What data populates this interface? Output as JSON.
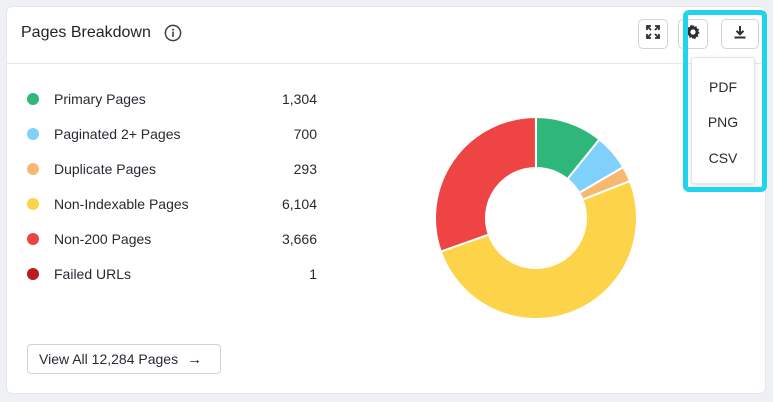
{
  "card": {
    "title": "Pages Breakdown",
    "view_all_label": "View All 12,284 Pages",
    "view_all_arrow": "→"
  },
  "legend": [
    {
      "label": "Primary Pages",
      "value": "1,304",
      "color": "#2fb77a"
    },
    {
      "label": "Paginated 2+ Pages",
      "value": "700",
      "color": "#7fd1fb"
    },
    {
      "label": "Duplicate Pages",
      "value": "293",
      "color": "#f7b972"
    },
    {
      "label": "Non-Indexable Pages",
      "value": "6,104",
      "color": "#fdd34a"
    },
    {
      "label": "Non-200 Pages",
      "value": "3,666",
      "color": "#ef4444"
    },
    {
      "label": "Failed URLs",
      "value": "1",
      "color": "#b91c1c"
    }
  ],
  "chart_data": {
    "type": "pie",
    "variant": "donut",
    "title": "Pages Breakdown",
    "categories": [
      "Primary Pages",
      "Paginated 2+ Pages",
      "Duplicate Pages",
      "Non-Indexable Pages",
      "Non-200 Pages",
      "Failed URLs"
    ],
    "values": [
      1304,
      700,
      293,
      6104,
      3666,
      1
    ],
    "colors": [
      "#2fb77a",
      "#7fd1fb",
      "#f7b972",
      "#fdd34a",
      "#ef4444",
      "#b91c1c"
    ]
  },
  "export_menu": {
    "items": [
      "PDF",
      "PNG",
      "CSV"
    ]
  },
  "colors": {
    "highlight": "#22d3ee",
    "border": "#cfd4da"
  },
  "icons": {
    "info": "info-icon",
    "fullscreen": "expand-icon",
    "settings": "gear-icon",
    "download": "download-icon",
    "arrow": "arrow-right-icon"
  }
}
